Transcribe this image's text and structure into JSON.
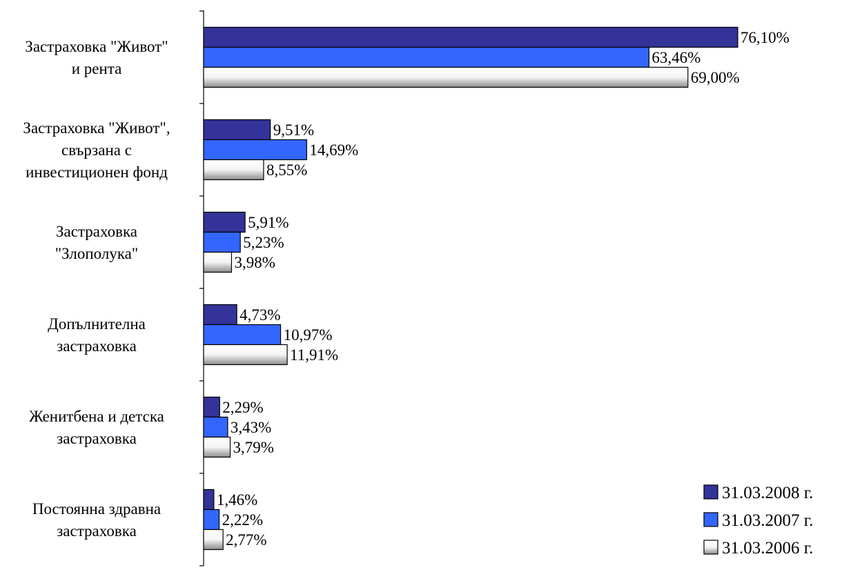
{
  "chart_data": {
    "type": "bar",
    "orientation": "horizontal",
    "categories": [
      [
        "Застраховка \"Живот\"",
        "и рента"
      ],
      [
        "Застраховка \"Живот\",",
        "свързана с",
        "инвестиционен фонд"
      ],
      [
        "Застраховка",
        "\"Злополука\""
      ],
      [
        "Допълнителна",
        "застраховка"
      ],
      [
        "Женитбена и детска",
        "застраховка"
      ],
      [
        "Постоянна здравна",
        "застраховка"
      ]
    ],
    "series": [
      {
        "name": "31.03.2008 г.",
        "color": "#333399",
        "values": [
          76.1,
          9.51,
          5.91,
          4.73,
          2.29,
          1.46
        ],
        "labels": [
          "76,10%",
          "9,51%",
          "5,91%",
          "4,73%",
          "2,29%",
          "1,46%"
        ]
      },
      {
        "name": "31.03.2007 г.",
        "color": "#3366FF",
        "values": [
          63.46,
          14.69,
          5.23,
          10.97,
          3.43,
          2.22
        ],
        "labels": [
          "63,46%",
          "14,69%",
          "5,23%",
          "10,97%",
          "3,43%",
          "2,22%"
        ]
      },
      {
        "name": "31.03.2006 г.",
        "color": "#FFFFFF",
        "values": [
          69.0,
          8.55,
          3.98,
          11.91,
          3.79,
          2.77
        ],
        "labels": [
          "69,00%",
          "8,55%",
          "3,98%",
          "11,91%",
          "3,79%",
          "2,77%"
        ]
      }
    ],
    "xlim": [
      0,
      100
    ],
    "grid": false,
    "legend": "bottom-right"
  }
}
